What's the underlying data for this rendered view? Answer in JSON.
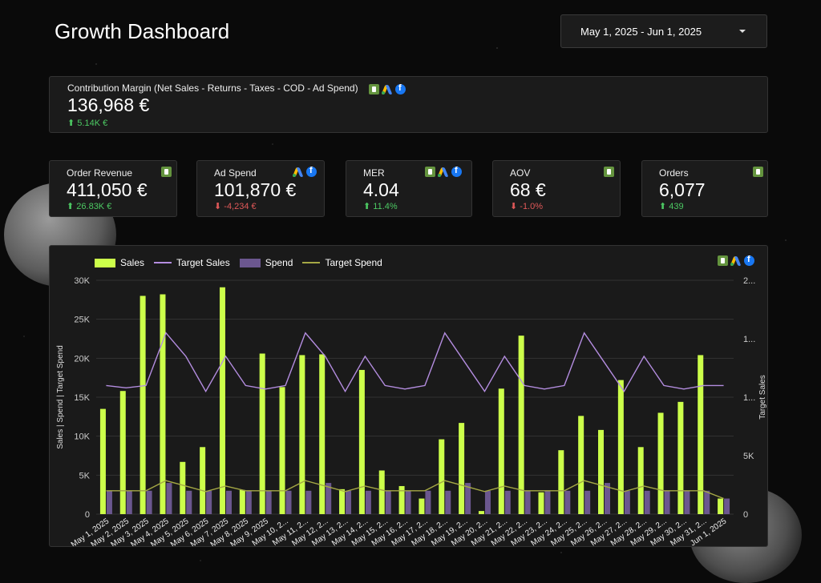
{
  "header": {
    "title": "Growth Dashboard",
    "date_range": "May 1, 2025 - Jun 1, 2025"
  },
  "contribution": {
    "label": "Contribution Margin (Net Sales - Returns - Taxes - COD - Ad Spend)",
    "value": "136,968 €",
    "delta": "5.14K €",
    "icons": [
      "shopify-icon",
      "google-ads-icon",
      "facebook-icon"
    ]
  },
  "kpis": [
    {
      "label": "Order Revenue",
      "value": "411,050 €",
      "delta": "26.83K €",
      "direction": "up",
      "icons": [
        "shopify-icon"
      ]
    },
    {
      "label": "Ad Spend",
      "value": "101,870 €",
      "delta": "-4,234 €",
      "direction": "down",
      "icons": [
        "google-ads-icon",
        "facebook-icon"
      ]
    },
    {
      "label": "MER",
      "value": "4.04",
      "delta": "11.4%",
      "direction": "up",
      "icons": [
        "shopify-icon",
        "google-ads-icon",
        "facebook-icon"
      ]
    },
    {
      "label": "AOV",
      "value": "68 €",
      "delta": "-1.0%",
      "direction": "down",
      "icons": [
        "shopify-icon"
      ]
    },
    {
      "label": "Orders",
      "value": "6,077",
      "delta": "439",
      "direction": "up",
      "icons": [
        "shopify-icon"
      ]
    }
  ],
  "colors": {
    "sales": "#ccff4a",
    "target_sales": "#b48de0",
    "spend": "#6b578f",
    "target_spend": "#a5a845",
    "up": "#4cc963",
    "down": "#e05858"
  },
  "chart_data": {
    "type": "bar",
    "legend": [
      "Sales",
      "Target Sales",
      "Spend",
      "Target Spend"
    ],
    "legend_position": "top-left",
    "grid": true,
    "ylabel_left": "Sales | Spend | Target Spend",
    "ylabel_right": "Target Sales",
    "y_left_ticks": [
      "0",
      "5K",
      "10K",
      "15K",
      "20K",
      "25K",
      "30K"
    ],
    "y_right_ticks": [
      "0",
      "5K",
      "1...",
      "1...",
      "2..."
    ],
    "ylim_left": [
      0,
      30000
    ],
    "ylim_right": [
      0,
      20000
    ],
    "categories": [
      "May 1, 2025",
      "May 2, 2025",
      "May 3, 2025",
      "May 4, 2025",
      "May 5, 2025",
      "May 6, 2025",
      "May 7, 2025",
      "May 8, 2025",
      "May 9, 2025",
      "May 10, 2...",
      "May 11, 2...",
      "May 12, 2...",
      "May 13, 2...",
      "May 14, 2...",
      "May 15, 2...",
      "May 16, 2...",
      "May 17, 2...",
      "May 18, 2...",
      "May 19, 2...",
      "May 20, 2...",
      "May 21, 2...",
      "May 22, 2...",
      "May 23, 2...",
      "May 24, 2...",
      "May 25, 2...",
      "May 26, 2...",
      "May 27, 2...",
      "May 28, 2...",
      "May 29, 2...",
      "May 30, 2...",
      "May 31, 2...",
      "Jun 1, 2025"
    ],
    "series": [
      {
        "name": "Sales",
        "kind": "bar",
        "axis": "left",
        "values": [
          13500,
          15800,
          28000,
          28200,
          6700,
          8600,
          29100,
          3100,
          20600,
          16300,
          20400,
          20500,
          3200,
          18500,
          5600,
          3600,
          2000,
          9600,
          11700,
          400,
          16100,
          22900,
          2800,
          8200,
          12600,
          10800,
          17200,
          8600,
          13000,
          14400,
          20400,
          2000
        ]
      },
      {
        "name": "Spend",
        "kind": "bar",
        "axis": "left",
        "values": [
          3000,
          3000,
          3000,
          4000,
          3000,
          3000,
          3000,
          3000,
          3000,
          3000,
          3000,
          4000,
          3000,
          3000,
          3000,
          3000,
          3000,
          3000,
          4000,
          3000,
          3000,
          3000,
          3000,
          3000,
          3000,
          4000,
          3000,
          3000,
          3000,
          3000,
          3000,
          2000
        ]
      },
      {
        "name": "Target Sales",
        "kind": "line",
        "axis": "right",
        "values": [
          11000,
          10800,
          11000,
          15500,
          13500,
          10500,
          13500,
          11000,
          10700,
          11000,
          15500,
          13500,
          10500,
          13500,
          11000,
          10700,
          11000,
          15500,
          13000,
          10500,
          13500,
          11000,
          10700,
          11000,
          15500,
          13000,
          10500,
          13500,
          11000,
          10700,
          11000,
          11000
        ]
      },
      {
        "name": "Target Spend",
        "kind": "line",
        "axis": "left",
        "values": [
          3000,
          3000,
          3000,
          4300,
          3600,
          2900,
          3600,
          3000,
          3000,
          3000,
          4300,
          3600,
          2900,
          3600,
          3000,
          3000,
          3000,
          4300,
          3600,
          2900,
          3600,
          3000,
          3000,
          3000,
          4300,
          3600,
          2900,
          3600,
          3000,
          3000,
          3000,
          2000
        ]
      }
    ]
  }
}
